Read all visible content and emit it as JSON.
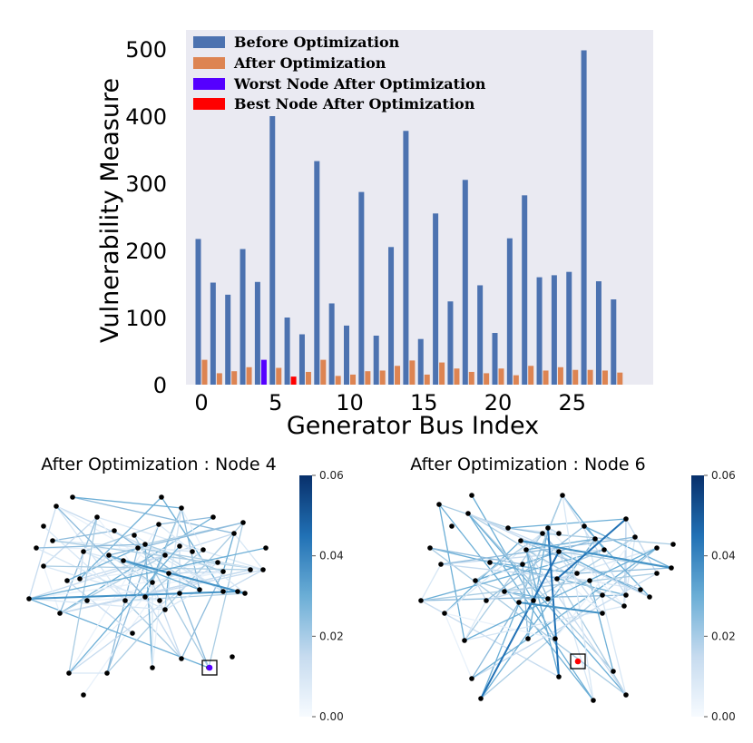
{
  "chart_data": [
    {
      "type": "bar",
      "xlabel": "Generator Bus Index",
      "ylabel": "Vulnerability Measure",
      "ylim": [
        0,
        525
      ],
      "yticks": [
        0,
        100,
        200,
        300,
        400,
        500
      ],
      "xticks": [
        0,
        5,
        10,
        15,
        20,
        25
      ],
      "x": [
        0,
        1,
        2,
        3,
        4,
        5,
        6,
        7,
        8,
        9,
        10,
        11,
        12,
        13,
        14,
        15,
        16,
        17,
        18,
        19,
        20,
        21,
        22,
        23,
        24,
        25,
        26,
        27,
        28
      ],
      "legend_position": "top-left",
      "grid": false,
      "series": [
        {
          "name": "Before Optimization",
          "color": "#4c72b0",
          "values": [
            217,
            152,
            134,
            202,
            153,
            400,
            100,
            75,
            333,
            121,
            88,
            287,
            73,
            205,
            378,
            68,
            255,
            124,
            305,
            148,
            77,
            218,
            282,
            160,
            163,
            168,
            498,
            154,
            127
          ]
        },
        {
          "name": "After Optimization",
          "color": "#dd8452",
          "values": [
            37,
            17,
            20,
            26,
            37,
            25,
            12,
            19,
            37,
            13,
            15,
            20,
            21,
            28,
            36,
            15,
            33,
            24,
            19,
            17,
            24,
            14,
            28,
            21,
            26,
            22,
            22,
            21,
            18
          ]
        },
        {
          "name": "Worst Node After Optimization",
          "color": "#5500ff",
          "index": 4,
          "value": 37
        },
        {
          "name": "Best Node After Optimization",
          "color": "#ff0000",
          "index": 6,
          "value": 12
        }
      ]
    },
    {
      "type": "network",
      "title": "After Optimization : Node 4",
      "colorbar": {
        "min": 0.0,
        "max": 0.06,
        "ticks": [
          "0.00",
          "0.02",
          "0.04",
          "0.06"
        ]
      },
      "highlight_color": "#5500ff"
    },
    {
      "type": "network",
      "title": "After Optimization : Node 6",
      "colorbar": {
        "min": 0.0,
        "max": 0.06,
        "ticks": [
          "0.00",
          "0.02",
          "0.04",
          "0.06"
        ]
      },
      "highlight_color": "#ff0000"
    }
  ]
}
